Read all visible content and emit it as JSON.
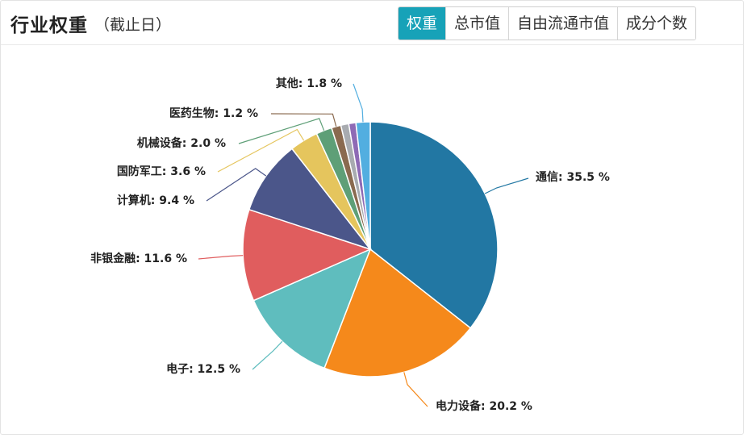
{
  "header": {
    "title": "行业权重",
    "subtitle": "（截止日）"
  },
  "tabs": [
    {
      "label": "权重",
      "active": true
    },
    {
      "label": "总市值",
      "active": false
    },
    {
      "label": "自由流通市值",
      "active": false
    },
    {
      "label": "成分个数",
      "active": false
    }
  ],
  "chart_data": {
    "type": "pie",
    "unit": "%",
    "slices": [
      {
        "name": "通信",
        "value": 35.5,
        "color": "#2277a3"
      },
      {
        "name": "电力设备",
        "value": 20.2,
        "color": "#f5891b"
      },
      {
        "name": "电子",
        "value": 12.5,
        "color": "#5fbdbe"
      },
      {
        "name": "非银金融",
        "value": 11.6,
        "color": "#e05d5e"
      },
      {
        "name": "计算机",
        "value": 9.4,
        "color": "#4b568a"
      },
      {
        "name": "国防军工",
        "value": 3.6,
        "color": "#e5c55d"
      },
      {
        "name": "机械设备",
        "value": 2.0,
        "color": "#5e9f77"
      },
      {
        "name": "医药生物",
        "value": 1.2,
        "color": "#8a6a4f"
      },
      {
        "name": "",
        "value": 1.0,
        "color": "#a8abb0"
      },
      {
        "name": "",
        "value": 0.9,
        "color": "#8e6ab5"
      },
      {
        "name": "其他",
        "value": 1.8,
        "color": "#52aee0"
      }
    ]
  }
}
